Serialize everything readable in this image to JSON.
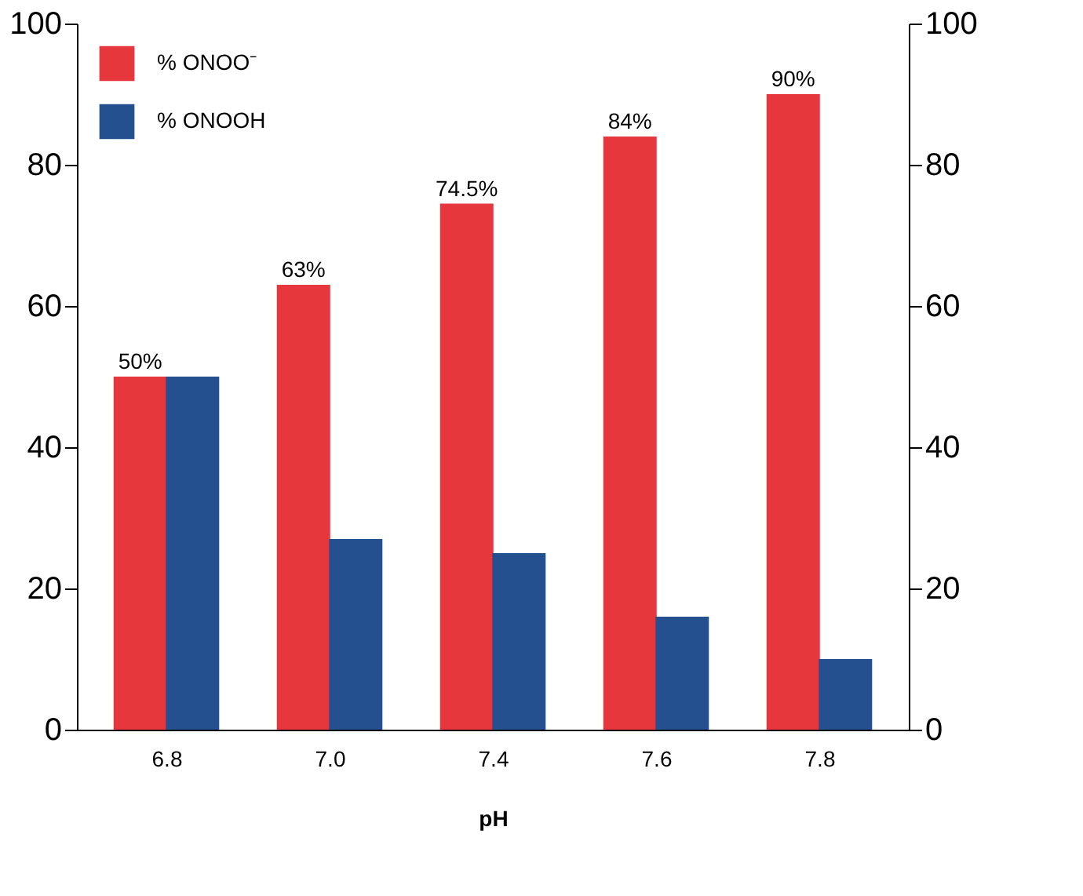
{
  "chart_data": {
    "type": "bar",
    "xlabel": "pH",
    "categories": [
      "6.8",
      "7.0",
      "7.4",
      "7.6",
      "7.8"
    ],
    "series": [
      {
        "name": "% ONOO⁻",
        "color": "#e6373d",
        "values": [
          50,
          63,
          74.5,
          84,
          90
        ],
        "value_labels": [
          "50%",
          "63%",
          "74.5%",
          "84%",
          "90%"
        ]
      },
      {
        "name": "% ONOOH",
        "color": "#25508f",
        "values": [
          50,
          27,
          25,
          16,
          10
        ]
      }
    ],
    "ylim": [
      0,
      100
    ],
    "yticks": [
      0,
      20,
      40,
      60,
      80,
      100
    ],
    "y2lim": [
      0,
      100
    ],
    "y2ticks": [
      0,
      20,
      40,
      60,
      80,
      100
    ],
    "grid": false,
    "legend": "top left"
  }
}
